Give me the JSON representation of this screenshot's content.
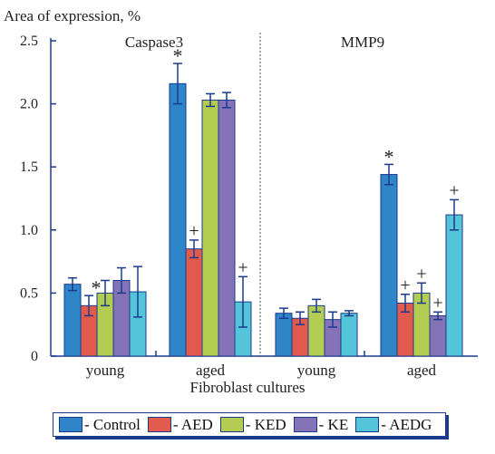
{
  "chart_data": {
    "type": "bar",
    "ylabel": "Area of expression, %",
    "xlabel": "Fibroblast cultures",
    "ylim": [
      0,
      2.5
    ],
    "yticks": [
      "0",
      "0.5",
      "1.0",
      "1.5",
      "2.0",
      "2.5"
    ],
    "ytick_values": [
      0,
      0.5,
      1.0,
      1.5,
      2.0,
      2.5
    ],
    "panels": [
      {
        "title": "Caspase3",
        "groups": [
          {
            "label": "young",
            "bars": [
              {
                "series": "Control",
                "value": 0.57,
                "err": 0.05,
                "mark": ""
              },
              {
                "series": "AED",
                "value": 0.4,
                "err": 0.08,
                "mark": "*"
              },
              {
                "series": "KED",
                "value": 0.5,
                "err": 0.1,
                "mark": ""
              },
              {
                "series": "KE",
                "value": 0.6,
                "err": 0.1,
                "mark": ""
              },
              {
                "series": "AEDG",
                "value": 0.51,
                "err": 0.2,
                "mark": ""
              }
            ]
          },
          {
            "label": "aged",
            "bars": [
              {
                "series": "Control",
                "value": 2.16,
                "err": 0.16,
                "mark": "*"
              },
              {
                "series": "AED",
                "value": 0.85,
                "err": 0.07,
                "mark": "+"
              },
              {
                "series": "KED",
                "value": 2.03,
                "err": 0.05,
                "mark": ""
              },
              {
                "series": "KE",
                "value": 2.03,
                "err": 0.06,
                "mark": ""
              },
              {
                "series": "AEDG",
                "value": 0.43,
                "err": 0.2,
                "mark": "+"
              }
            ]
          }
        ]
      },
      {
        "title": "MMP9",
        "groups": [
          {
            "label": "young",
            "bars": [
              {
                "series": "Control",
                "value": 0.34,
                "err": 0.04,
                "mark": ""
              },
              {
                "series": "AED",
                "value": 0.3,
                "err": 0.05,
                "mark": ""
              },
              {
                "series": "KED",
                "value": 0.4,
                "err": 0.05,
                "mark": ""
              },
              {
                "series": "KE",
                "value": 0.29,
                "err": 0.06,
                "mark": ""
              },
              {
                "series": "AEDG",
                "value": 0.34,
                "err": 0.02,
                "mark": ""
              }
            ]
          },
          {
            "label": "aged",
            "bars": [
              {
                "series": "Control",
                "value": 1.44,
                "err": 0.08,
                "mark": "*"
              },
              {
                "series": "AED",
                "value": 0.42,
                "err": 0.07,
                "mark": "+"
              },
              {
                "series": "KED",
                "value": 0.5,
                "err": 0.08,
                "mark": "+"
              },
              {
                "series": "KE",
                "value": 0.32,
                "err": 0.03,
                "mark": "+"
              },
              {
                "series": "AEDG",
                "value": 1.12,
                "err": 0.12,
                "mark": "+"
              }
            ]
          }
        ]
      }
    ],
    "series": [
      {
        "name": "Control",
        "color": "#2e86c9"
      },
      {
        "name": "AED",
        "color": "#e05a4e"
      },
      {
        "name": "KED",
        "color": "#b3cd52"
      },
      {
        "name": "KE",
        "color": "#8573b8"
      },
      {
        "name": "AEDG",
        "color": "#54c4d9"
      }
    ],
    "legend": {
      "placement": "bottom",
      "labels": [
        "- Control",
        "- AED",
        "- KED",
        "- KE",
        "- AEDG"
      ]
    },
    "grid": false,
    "axis_color": "#1b3a8c"
  }
}
